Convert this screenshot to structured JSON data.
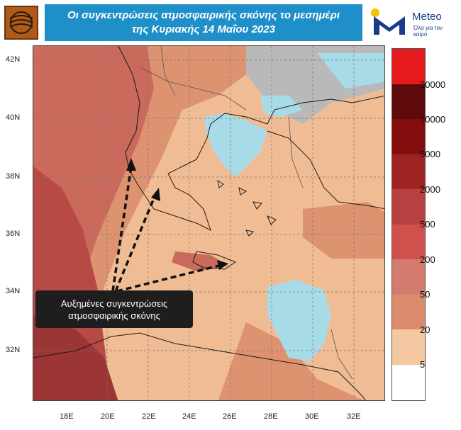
{
  "header": {
    "title_line1": "Οι συγκεντρώσεις ατμοσφαιρικής σκόνης το μεσημέρι",
    "title_line2": "της Κυριακής 14 Μαΐου 2023",
    "title_bg": "#1e8fc8"
  },
  "brand": {
    "name": "Meteo",
    "tagline": "Όλα για τον καιρό",
    "color": "#1a3a8a",
    "sun_color": "#f5c400"
  },
  "annotation": {
    "line1": "Αυξημένες συγκεντρώσεις",
    "line2": "ατμοσφαιρικής σκόνης"
  },
  "axes": {
    "lat_ticks": [
      "42N",
      "40N",
      "38N",
      "36N",
      "34N",
      "32N"
    ],
    "lon_ticks": [
      "18E",
      "20E",
      "22E",
      "24E",
      "26E",
      "28E",
      "30E",
      "32E"
    ]
  },
  "legend": {
    "labels": [
      "20000",
      "10000",
      "5000",
      "2000",
      "500",
      "200",
      "50",
      "20",
      "5"
    ],
    "colors": [
      "#e41a1c",
      "#5e0a0a",
      "#860d0d",
      "#9e2424",
      "#b84040",
      "#d0504e",
      "#d37b6e",
      "#dc8c6c",
      "#f4c8a0",
      "#ffffff"
    ]
  },
  "map": {
    "colors": {
      "sea_low": "#a8dbe8",
      "land_gray": "#b9b9b9",
      "dust_light": "#f0bc94",
      "dust_mid": "#dd9270",
      "dust_high": "#c96a5c",
      "dust_very_high": "#b84a45",
      "dust_extreme": "#9c3535"
    }
  }
}
